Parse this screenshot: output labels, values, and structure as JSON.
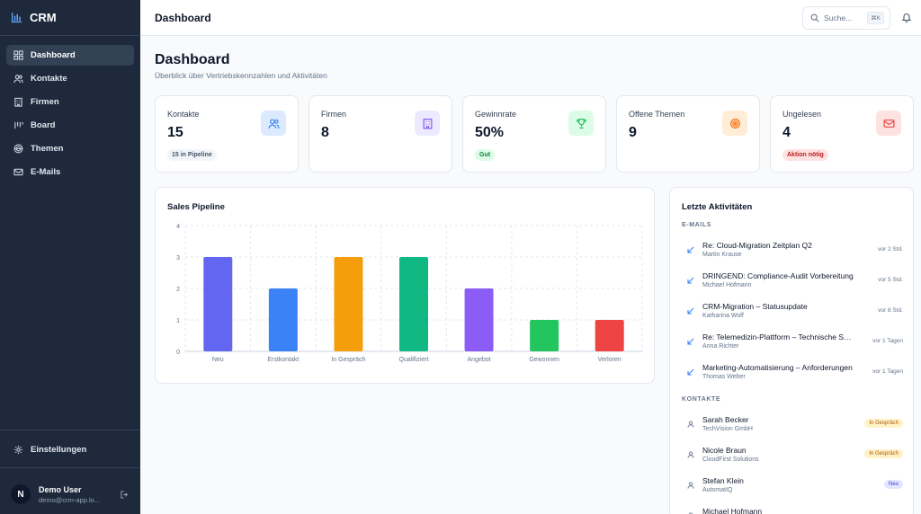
{
  "app": {
    "name": "CRM",
    "accent": "#3b82f6"
  },
  "sidebar": {
    "items": [
      {
        "label": "Dashboard",
        "icon": "dashboard-icon"
      },
      {
        "label": "Kontakte",
        "icon": "users-icon"
      },
      {
        "label": "Firmen",
        "icon": "building-icon"
      },
      {
        "label": "Board",
        "icon": "board-icon"
      },
      {
        "label": "Themen",
        "icon": "topics-icon"
      },
      {
        "label": "E-Mails",
        "icon": "mail-icon"
      }
    ],
    "settings_label": "Einstellungen",
    "user": {
      "initial": "N",
      "name": "Demo User",
      "email": "demo@crm-app.lo..."
    }
  },
  "topbar": {
    "title": "Dashboard",
    "search_placeholder": "Suche...",
    "search_shortcut": "⌘K"
  },
  "page": {
    "title": "Dashboard",
    "subtitle": "Überblick über Vertriebskennzahlen und Aktivitäten"
  },
  "stats": [
    {
      "label": "Kontakte",
      "value": "15",
      "badge": "15 in Pipeline",
      "color": "#3b82f6"
    },
    {
      "label": "Firmen",
      "value": "8",
      "badge": "",
      "color": "#8b5cf6"
    },
    {
      "label": "Gewinnrate",
      "value": "50%",
      "badge": "Gut",
      "color": "#22c55e"
    },
    {
      "label": "Offene Themen",
      "value": "9",
      "badge": "",
      "color": "#f97316"
    },
    {
      "label": "Ungelesen",
      "value": "4",
      "badge": "Aktion nötig",
      "color": "#ef4444"
    }
  ],
  "pipeline": {
    "title": "Sales Pipeline"
  },
  "chart_data": {
    "type": "bar",
    "title": "Sales Pipeline",
    "categories": [
      "Neu",
      "Erstkontakt",
      "In Gespräch",
      "Qualifiziert",
      "Angebot",
      "Gewonnen",
      "Verloren"
    ],
    "values": [
      3,
      2,
      3,
      3,
      2,
      1,
      1
    ],
    "colors": [
      "#6366f1",
      "#3b82f6",
      "#f59e0b",
      "#10b981",
      "#8b5cf6",
      "#22c55e",
      "#ef4444"
    ],
    "yticks": [
      0,
      1,
      2,
      3,
      4
    ],
    "ylim": [
      0,
      4
    ],
    "xlabel": "",
    "ylabel": "",
    "grid": true
  },
  "activity": {
    "title": "Letzte Aktivitäten",
    "emails_label": "E-MAILS",
    "emails": [
      {
        "title": "Re: Cloud-Migration Zeitplan Q2",
        "sender": "Martin Krause",
        "time": "vor 2 Std."
      },
      {
        "title": "DRINGEND: Compliance-Audit Vorbereitung",
        "sender": "Michael Hofmann",
        "time": "vor 5 Std."
      },
      {
        "title": "CRM-Migration – Statusupdate",
        "sender": "Katharina Wolf",
        "time": "vor 8 Std."
      },
      {
        "title": "Re: Telemedizin-Plattform – Technische Spezifikation",
        "sender": "Anna Richter",
        "time": "vor 1 Tagen"
      },
      {
        "title": "Marketing-Automatisierung – Anforderungen",
        "sender": "Thomas Weber",
        "time": "vor 1 Tagen"
      }
    ],
    "contacts_label": "KONTAKTE",
    "contacts": [
      {
        "name": "Sarah Becker",
        "company": "TechVision GmbH",
        "status": "In Gespräch",
        "tone": "amber"
      },
      {
        "name": "Nicole Braun",
        "company": "CloudFirst Solutions",
        "status": "In Gespräch",
        "tone": "amber"
      },
      {
        "name": "Stefan Klein",
        "company": "AutomatIQ",
        "status": "Neu",
        "tone": "blue"
      },
      {
        "name": "Michael Hofmann",
        "company": "",
        "status": "",
        "tone": "amber"
      }
    ]
  }
}
